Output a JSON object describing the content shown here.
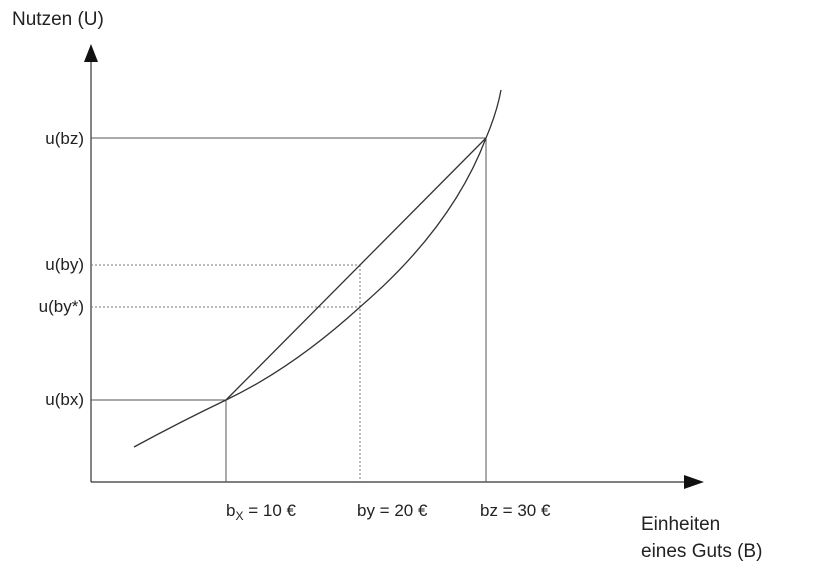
{
  "axes": {
    "y_title": "Nutzen (U)",
    "x_title_line1": "Einheiten",
    "x_title_line2": "eines Guts (B)"
  },
  "y_labels": {
    "u_bz": "u(bz)",
    "u_by": "u(by)",
    "u_by_star": "u(by*)",
    "u_bx": "u(bx)"
  },
  "x_labels": {
    "bx_base": "b",
    "bx_sub": "X",
    "bx_value": " = 10 €",
    "by": "by = 20 €",
    "bz": "bz = 30 €"
  },
  "colors": {
    "line": "#333333",
    "guide": "#555555",
    "dotted": "#777777"
  }
}
